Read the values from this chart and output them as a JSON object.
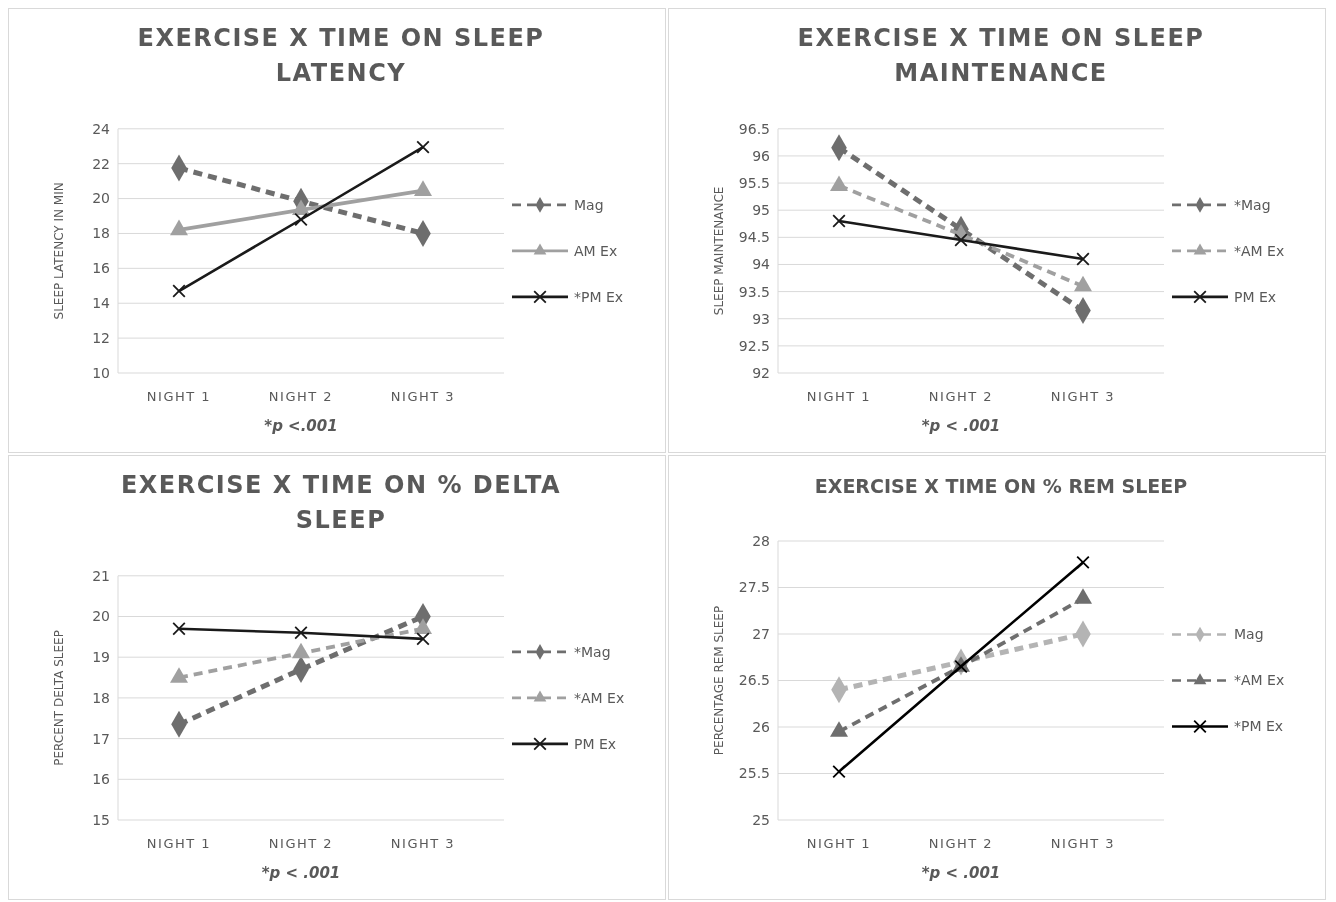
{
  "chart_data": [
    {
      "type": "line",
      "title": "EXERCISE X TIME ON SLEEP LATENCY",
      "ylabel": "SLEEP LATENCY IN MIN",
      "categories": [
        "NIGHT 1",
        "NIGHT 2",
        "NIGHT 3"
      ],
      "ylim": [
        10,
        24
      ],
      "yticks": [
        10,
        12,
        14,
        16,
        18,
        20,
        22,
        24
      ],
      "grid": "y",
      "legend": "right",
      "annotations": [
        "*p <.001"
      ],
      "series": [
        {
          "name": "Mag",
          "color": "#6e6e6e",
          "values": [
            21.75,
            19.85,
            18.0
          ],
          "marker": "diamond",
          "line_style": "dashed"
        },
        {
          "name": "AM Ex",
          "color": "#a0a0a0",
          "values": [
            18.2,
            19.35,
            20.45
          ],
          "marker": "triangle",
          "line_style": "solid"
        },
        {
          "name": "*PM Ex",
          "color": "#1a1a1a",
          "values": [
            14.7,
            18.8,
            22.95
          ],
          "marker": "cross",
          "line_style": "solid"
        }
      ]
    },
    {
      "type": "line",
      "title": "EXERCISE X TIME ON SLEEP MAINTENANCE",
      "ylabel": "SLEEP MAINTENANCE",
      "categories": [
        "NIGHT 1",
        "NIGHT 2",
        "NIGHT 3"
      ],
      "ylim": [
        92,
        96.5
      ],
      "yticks": [
        92,
        92.5,
        93,
        93.5,
        94,
        94.5,
        95,
        95.5,
        96,
        96.5
      ],
      "grid": "y",
      "legend": "right",
      "annotations": [
        "*p < .001"
      ],
      "series": [
        {
          "name": "*Mag",
          "color": "#6e6e6e",
          "values": [
            96.15,
            94.65,
            93.15
          ],
          "marker": "diamond",
          "line_style": "dashed"
        },
        {
          "name": "*AM Ex",
          "color": "#a0a0a0",
          "values": [
            95.45,
            94.55,
            93.6
          ],
          "marker": "triangle",
          "line_style": "dashed"
        },
        {
          "name": "PM Ex",
          "color": "#1a1a1a",
          "values": [
            94.8,
            94.45,
            94.1
          ],
          "marker": "cross",
          "line_style": "solid"
        }
      ]
    },
    {
      "type": "line",
      "title": "EXERCISE X TIME ON % DELTA SLEEP",
      "ylabel": "PERCENT DELTA SLEEP",
      "categories": [
        "NIGHT 1",
        "NIGHT 2",
        "NIGHT 3"
      ],
      "ylim": [
        15,
        21
      ],
      "yticks": [
        15,
        16,
        17,
        18,
        19,
        20,
        21
      ],
      "grid": "y",
      "legend": "right",
      "annotations": [
        "*p < .001"
      ],
      "series": [
        {
          "name": "*Mag",
          "color": "#6e6e6e",
          "values": [
            17.35,
            18.7,
            20.0
          ],
          "marker": "diamond",
          "line_style": "dashed"
        },
        {
          "name": "*AM Ex",
          "color": "#a0a0a0",
          "values": [
            18.5,
            19.1,
            19.7
          ],
          "marker": "triangle",
          "line_style": "dashed"
        },
        {
          "name": "PM Ex",
          "color": "#1a1a1a",
          "values": [
            19.7,
            19.6,
            19.45
          ],
          "marker": "cross",
          "line_style": "solid"
        }
      ]
    },
    {
      "type": "line",
      "title": "EXERCISE X TIME ON % REM SLEEP",
      "ylabel": "PERCENTAGE REM SLEEP",
      "categories": [
        "NIGHT 1",
        "NIGHT 2",
        "NIGHT 3"
      ],
      "ylim": [
        25,
        28
      ],
      "yticks": [
        25,
        25.5,
        26,
        26.5,
        27,
        27.5,
        28
      ],
      "grid": "y",
      "legend": "right",
      "annotations": [
        "*p < .001"
      ],
      "series": [
        {
          "name": "Mag",
          "color": "#b4b4b4",
          "values": [
            26.4,
            26.7,
            27.0
          ],
          "marker": "diamond",
          "line_style": "dashed"
        },
        {
          "name": "*AM Ex",
          "color": "#6e6e6e",
          "values": [
            25.95,
            26.65,
            27.38
          ],
          "marker": "triangle",
          "line_style": "dashed"
        },
        {
          "name": "*PM Ex",
          "color": "#000000",
          "values": [
            25.52,
            26.65,
            27.77
          ],
          "marker": "cross",
          "line_style": "solid"
        }
      ]
    }
  ]
}
